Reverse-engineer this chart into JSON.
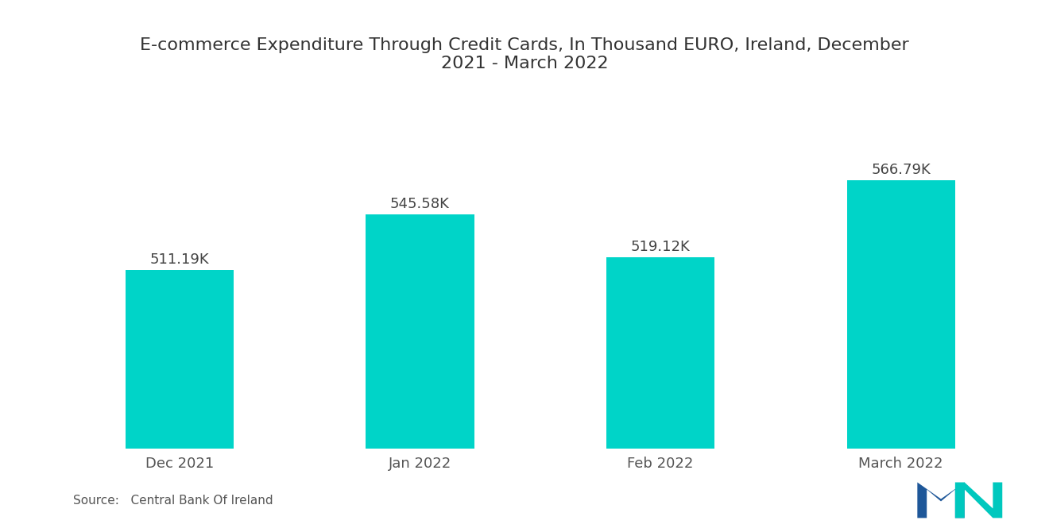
{
  "title": "E-commerce Expenditure Through Credit Cards, In Thousand EURO, Ireland, December\n2021 - March 2022",
  "categories": [
    "Dec 2021",
    "Jan 2022",
    "Feb 2022",
    "March 2022"
  ],
  "values": [
    511.19,
    545.58,
    519.12,
    566.79
  ],
  "labels": [
    "511.19K",
    "545.58K",
    "519.12K",
    "566.79K"
  ],
  "bar_color": "#00D4C8",
  "background_color": "#ffffff",
  "title_fontsize": 16,
  "label_fontsize": 13,
  "tick_fontsize": 13,
  "source_text": "Source:   Central Bank Of Ireland",
  "ylim": [
    400,
    620
  ],
  "bar_width": 0.45
}
